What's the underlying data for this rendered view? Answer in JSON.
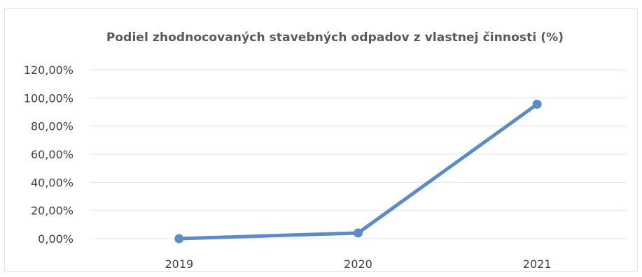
{
  "chart_data": {
    "type": "line",
    "title": "Podiel zhodnocovaných stavebných odpadov z vlastnej činnosti (%)",
    "xlabel": "",
    "ylabel": "",
    "categories": [
      "2019",
      "2020",
      "2021"
    ],
    "series": [
      {
        "values": [
          0.0,
          4.0,
          95.5
        ]
      }
    ],
    "ylim": [
      0,
      120
    ],
    "y_ticks": [
      "0,00%",
      "20,00%",
      "40,00%",
      "60,00%",
      "80,00%",
      "100,00%",
      "120,00%"
    ],
    "y_tick_values": [
      0,
      20,
      40,
      60,
      80,
      100,
      120
    ],
    "grid": true,
    "legend": "none",
    "colors": {
      "series": "#5b8dc4",
      "grid": "#e5e5e5",
      "text": "#404040",
      "title": "#595959"
    }
  }
}
